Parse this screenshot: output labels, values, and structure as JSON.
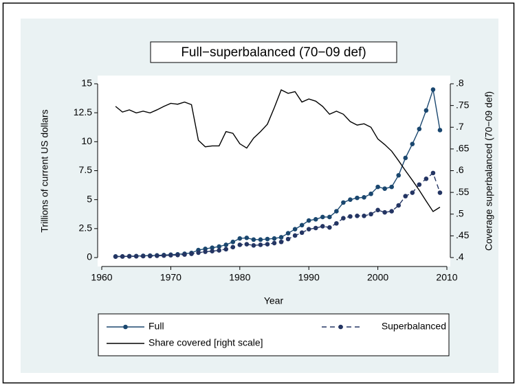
{
  "chart_data": {
    "type": "line",
    "title": "Full−superbalanced (70−09 def)",
    "x_label": "Year",
    "y_label": "Trillions of current US dollars",
    "y2_label": "Coverage superbalanced (70−09 def)",
    "x": [
      1962,
      1963,
      1964,
      1965,
      1966,
      1967,
      1968,
      1969,
      1970,
      1971,
      1972,
      1973,
      1974,
      1975,
      1976,
      1977,
      1978,
      1979,
      1980,
      1981,
      1982,
      1983,
      1984,
      1985,
      1986,
      1987,
      1988,
      1989,
      1990,
      1991,
      1992,
      1993,
      1994,
      1995,
      1996,
      1997,
      1998,
      1999,
      2000,
      2001,
      2002,
      2003,
      2004,
      2005,
      2006,
      2007,
      2008,
      2009
    ],
    "series": [
      {
        "name": "Full",
        "color": "#1a476f",
        "marker": true,
        "dash": false,
        "values": [
          0.1,
          0.1,
          0.12,
          0.13,
          0.15,
          0.17,
          0.19,
          0.22,
          0.25,
          0.28,
          0.33,
          0.4,
          0.65,
          0.75,
          0.85,
          0.95,
          1.1,
          1.35,
          1.65,
          1.7,
          1.55,
          1.55,
          1.6,
          1.65,
          1.75,
          2.1,
          2.45,
          2.8,
          3.2,
          3.3,
          3.5,
          3.5,
          4.0,
          4.75,
          5.0,
          5.15,
          5.2,
          5.5,
          6.1,
          5.95,
          6.1,
          7.1,
          8.6,
          9.8,
          11.1,
          12.7,
          14.5,
          11.0
        ]
      },
      {
        "name": "Superbalanced",
        "color": "#243563",
        "marker": true,
        "dash": true,
        "values": [
          0.08,
          0.09,
          0.1,
          0.11,
          0.12,
          0.13,
          0.15,
          0.17,
          0.2,
          0.22,
          0.26,
          0.32,
          0.42,
          0.5,
          0.55,
          0.62,
          0.72,
          0.9,
          1.1,
          1.15,
          1.05,
          1.1,
          1.15,
          1.25,
          1.35,
          1.6,
          1.9,
          2.15,
          2.45,
          2.55,
          2.7,
          2.6,
          2.95,
          3.4,
          3.55,
          3.6,
          3.6,
          3.75,
          4.1,
          3.9,
          4.0,
          4.5,
          5.3,
          5.6,
          6.3,
          6.8,
          7.3,
          5.6
        ]
      },
      {
        "name": "Share covered [right scale]",
        "color": "#000000",
        "marker": false,
        "dash": false,
        "axis": "y2",
        "values": [
          0.748,
          0.735,
          0.74,
          0.733,
          0.737,
          0.733,
          0.74,
          0.748,
          0.755,
          0.753,
          0.758,
          0.752,
          0.67,
          0.655,
          0.657,
          0.657,
          0.69,
          0.686,
          0.662,
          0.652,
          0.675,
          0.69,
          0.707,
          0.745,
          0.786,
          0.778,
          0.782,
          0.758,
          0.765,
          0.76,
          0.748,
          0.73,
          0.737,
          0.73,
          0.713,
          0.705,
          0.708,
          0.7,
          0.673,
          0.66,
          0.645,
          0.623,
          0.6,
          0.578,
          0.555,
          0.53,
          0.506,
          0.516
        ]
      }
    ],
    "xlim": [
      1960,
      2010
    ],
    "xticks": [
      1960,
      1970,
      1980,
      1990,
      2000,
      2010
    ],
    "ylim": [
      0,
      15
    ],
    "yticks": [
      0,
      2.5,
      5,
      7.5,
      10,
      12.5,
      15
    ],
    "y2lim": [
      0.4,
      0.8
    ],
    "y2ticks": [
      {
        "value": 0.4,
        "label": ".4"
      },
      {
        "value": 0.45,
        "label": ".45"
      },
      {
        "value": 0.5,
        "label": ".5"
      },
      {
        "value": 0.55,
        "label": ".55"
      },
      {
        "value": 0.6,
        "label": ".6"
      },
      {
        "value": 0.65,
        "label": ".65"
      },
      {
        "value": 0.7,
        "label": ".7"
      },
      {
        "value": 0.75,
        "label": ".75"
      },
      {
        "value": 0.8,
        "label": ".8"
      }
    ],
    "grid": false,
    "legend": "bottom"
  }
}
